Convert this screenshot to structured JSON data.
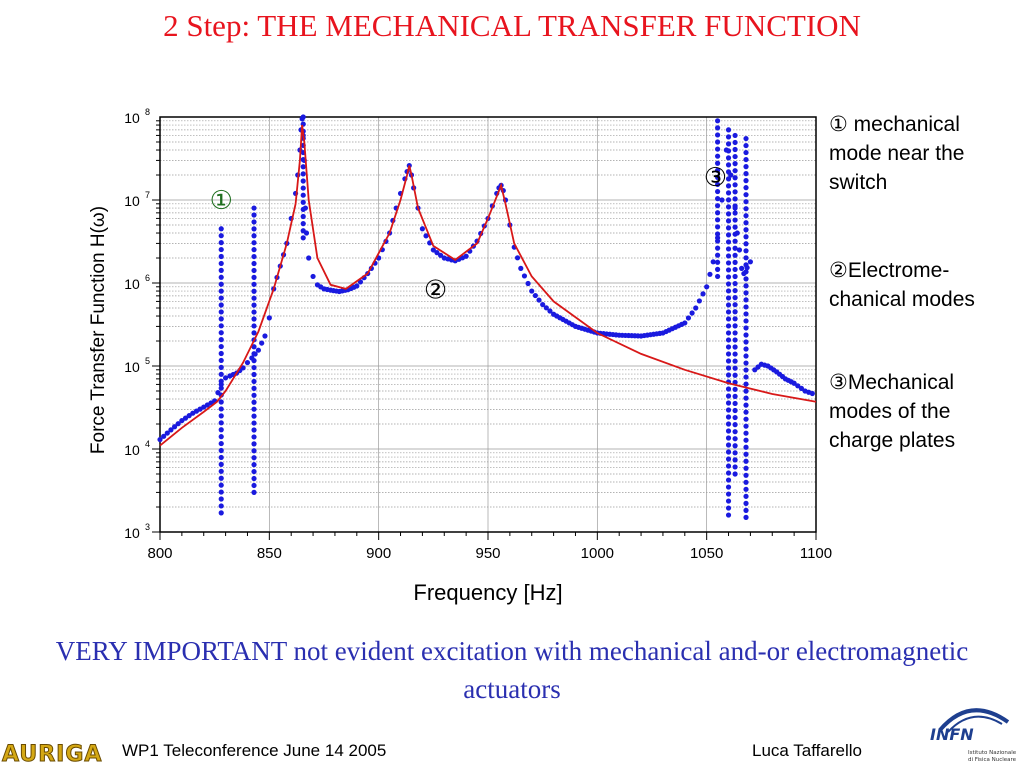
{
  "slide": {
    "title": "2 Step: THE MECHANICAL TRANSFER FUNCTION",
    "notes": [
      {
        "symbol": "①",
        "text": "mechanical mode near the switch"
      },
      {
        "symbol": "②",
        "text": "Electrome-chanical modes"
      },
      {
        "symbol": "③",
        "text": "Mechanical modes of the charge plates"
      }
    ],
    "bottom_highlight": "VERY IMPORTANT",
    "bottom_text": "not evident excitation with mechanical and-or electromagnetic actuators",
    "footer_left": "WP1 Teleconference June 14 2005",
    "footer_right": "Luca Taffarello",
    "logo_left_text": "AURIGA",
    "logo_right_text": "INFN",
    "logo_right_sub1": "Istituto Nazionale",
    "logo_right_sub2": "di Fisica Nucleare"
  },
  "colors": {
    "title": "#e8141e",
    "bottom_text": "#2a2fb0",
    "measured_points": "#1a1adf",
    "model_line": "#d81818",
    "marker_1": "#1f6f1f"
  },
  "chart_data": {
    "type": "scatter",
    "xlabel": "Frequency  [Hz]",
    "ylabel": "Force Transfer Function  H(ω)",
    "xlim": [
      800,
      1100
    ],
    "ylim": [
      1000,
      100000000
    ],
    "yscale": "log",
    "xticks": [
      800,
      850,
      900,
      950,
      1000,
      1050,
      1100
    ],
    "yticks": [
      {
        "value": 1000,
        "base": "10",
        "exp": "3"
      },
      {
        "value": 10000,
        "base": "10",
        "exp": "4"
      },
      {
        "value": 100000,
        "base": "10",
        "exp": "5"
      },
      {
        "value": 1000000,
        "base": "10",
        "exp": "6"
      },
      {
        "value": 10000000,
        "base": "10",
        "exp": "7"
      },
      {
        "value": 100000000,
        "base": "10",
        "exp": "8"
      }
    ],
    "grid": true,
    "annotations": [
      {
        "label": "①",
        "x": 828,
        "y": 10000000
      },
      {
        "label": "②",
        "x": 926,
        "y": 830000
      },
      {
        "label": "③",
        "x": 1054,
        "y": 19000000
      }
    ],
    "series": [
      {
        "kind": "line",
        "x": [
          800,
          810,
          820,
          826,
          830,
          838,
          845,
          852,
          858,
          862,
          864,
          865,
          866,
          868,
          872,
          878,
          885,
          895,
          905,
          910,
          913,
          914,
          915,
          918,
          925,
          935,
          945,
          950,
          954,
          956,
          958,
          962,
          970,
          980,
          1000,
          1020,
          1040,
          1060,
          1080,
          1100
        ],
        "y": [
          11000,
          18000,
          28000,
          37000,
          50000,
          110000,
          260000,
          850000,
          3000000,
          9000000,
          30000000,
          80000000,
          50000000,
          10000000,
          2000000,
          950000,
          850000,
          1300000,
          4000000,
          10000000,
          20000000,
          26000000,
          20000000,
          8000000,
          2800000,
          1900000,
          3000000,
          6000000,
          11000000,
          15000000,
          9000000,
          3000000,
          1200000,
          600000,
          250000,
          140000,
          90000,
          62000,
          46000,
          37000
        ]
      },
      {
        "kind": "points",
        "x": [
          800,
          805,
          810,
          815,
          820,
          825,
          828,
          830,
          832,
          835,
          838,
          840,
          842,
          845,
          848,
          850,
          852,
          855,
          858,
          860,
          862,
          863,
          864,
          864.5,
          865,
          865.5,
          866,
          866.5,
          867,
          868,
          870,
          872,
          875,
          878,
          882,
          886,
          890,
          895,
          900,
          905,
          908,
          910,
          912,
          913,
          914,
          915,
          916,
          918,
          920,
          925,
          930,
          935,
          940,
          945,
          950,
          952,
          954,
          955,
          956,
          957,
          958,
          960,
          962,
          965,
          970,
          975,
          980,
          990,
          1000,
          1010,
          1020,
          1030,
          1040,
          1045,
          1050,
          1053,
          1055,
          1057,
          1059,
          1061,
          1063,
          1064,
          1065,
          1066,
          1067,
          1070,
          1072,
          1075,
          1078,
          1082,
          1086,
          1090,
          1095,
          1100
        ],
        "y": [
          13000,
          17000,
          22000,
          27000,
          32000,
          38000,
          60000,
          72000,
          76000,
          82000,
          95000,
          110000,
          125000,
          155000,
          230000,
          380000,
          850000,
          1600000,
          3000000,
          6000000,
          12000000,
          20000000,
          40000000,
          70000000,
          95000000,
          60000000,
          30000000,
          8000000,
          4000000,
          2000000,
          1200000,
          950000,
          850000,
          820000,
          790000,
          830000,
          920000,
          1300000,
          2000000,
          4000000,
          8000000,
          12000000,
          18000000,
          22000000,
          26000000,
          20000000,
          14000000,
          8000000,
          4500000,
          2500000,
          2000000,
          1850000,
          2100000,
          3200000,
          6000000,
          8500000,
          12000000,
          14000000,
          15000000,
          13000000,
          10000000,
          5000000,
          2700000,
          1500000,
          800000,
          550000,
          420000,
          300000,
          250000,
          235000,
          230000,
          250000,
          330000,
          500000,
          900000,
          1800000,
          3500000,
          10000000,
          40000000,
          20000000,
          8000000,
          4000000,
          2500000,
          1500000,
          1300000,
          1800000,
          90000,
          105000,
          100000,
          85000,
          70000,
          62000,
          50000,
          45000
        ]
      },
      {
        "kind": "points_vertical",
        "bands": [
          {
            "x": 828,
            "y_low": 1700,
            "y_high": 4500000
          },
          {
            "x": 843,
            "y_low": 3000,
            "y_high": 8000000
          },
          {
            "x": 865.5,
            "y_low": 3500000,
            "y_high": 100000000
          },
          {
            "x": 1055,
            "y_low": 1200000,
            "y_high": 90000000
          },
          {
            "x": 1060,
            "y_low": 1600,
            "y_high": 70000000
          },
          {
            "x": 1063,
            "y_low": 5000,
            "y_high": 60000000
          },
          {
            "x": 1068,
            "y_low": 1500,
            "y_high": 55000000
          }
        ]
      }
    ]
  }
}
